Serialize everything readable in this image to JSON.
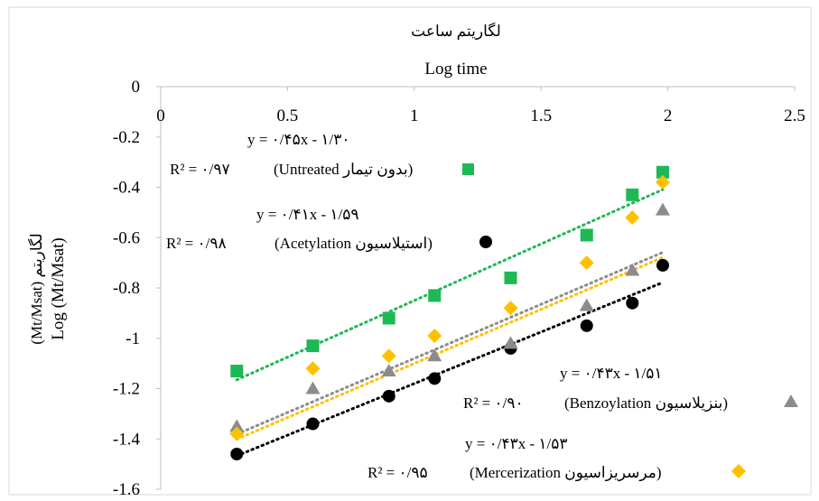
{
  "chart_data": {
    "type": "scatter",
    "title_fa": "لگاریتم ساعت",
    "xlabel": "Log time",
    "ylabel": "Log (Mt/Msat)",
    "ylabel_fa": "(Mt/Msat) لگاریتم",
    "xlim": [
      0,
      2.5
    ],
    "ylim": [
      -1.6,
      0
    ],
    "x_ticks": [
      "0",
      "0.5",
      "1",
      "1.5",
      "2",
      "2.5"
    ],
    "y_ticks": [
      "0",
      "-0.2",
      "-0.4",
      "-0.6",
      "-0.8",
      "-1",
      "-1.2",
      "-1.4",
      "-1.6"
    ],
    "x_axis_position": "top",
    "grid": false,
    "series": [
      {
        "name": "Untreated",
        "name_fa": "بدون تیمار",
        "marker": "square",
        "color": "#1db954",
        "x": [
          0.3,
          0.6,
          0.9,
          1.08,
          1.38,
          1.68,
          1.86,
          1.98
        ],
        "y": [
          -1.13,
          -1.03,
          -0.92,
          -0.83,
          -0.76,
          -0.59,
          -0.43,
          -0.34
        ],
        "equation": "y = ۰/۴۵x - ۱/۳۰",
        "r2": "R² = ۰/۹۷",
        "legend": "(Untreated بدون تیمار)"
      },
      {
        "name": "Acetylation",
        "name_fa": "استیلاسیون",
        "marker": "circle",
        "color": "#000000",
        "x": [
          0.3,
          0.6,
          0.9,
          1.08,
          1.38,
          1.68,
          1.86,
          1.98
        ],
        "y": [
          -1.46,
          -1.34,
          -1.23,
          -1.16,
          -1.04,
          -0.95,
          -0.86,
          -0.71
        ],
        "equation": "y = ۰/۴۱x - ۱/۵۹",
        "r2": "R² = ۰/۹۸",
        "legend": "(Acetylation استیلاسیون)"
      },
      {
        "name": "Benzoylation",
        "name_fa": "بنزیلاسیون",
        "marker": "triangle",
        "color": "#8c8c8c",
        "x": [
          0.3,
          0.6,
          0.9,
          1.08,
          1.38,
          1.68,
          1.86,
          1.98
        ],
        "y": [
          -1.35,
          -1.2,
          -1.13,
          -1.07,
          -1.02,
          -0.87,
          -0.73,
          -0.49
        ],
        "equation": "y = ۰/۴۳x - ۱/۵۱",
        "r2": "R² = ۰/۹۰",
        "legend": "(Benzoylation بنزیلاسیون)"
      },
      {
        "name": "Mercerization",
        "name_fa": "مرسریزاسیون",
        "marker": "diamond",
        "color": "#ffc000",
        "x": [
          0.3,
          0.6,
          0.9,
          1.08,
          1.38,
          1.68,
          1.86,
          1.98
        ],
        "y": [
          -1.38,
          -1.12,
          -1.07,
          -0.99,
          -0.88,
          -0.7,
          -0.52,
          -0.38
        ],
        "equation": "y = ۰/۴۳x - ۱/۵۳",
        "r2": "R² = ۰/۹۵",
        "legend": "(Mercerization مرسریزاسیون)"
      }
    ],
    "trendlines": [
      {
        "series": "Untreated",
        "slope": 0.45,
        "intercept": -1.3,
        "from": 0.3,
        "to": 1.98
      },
      {
        "series": "Acetylation",
        "slope": 0.41,
        "intercept": -1.59,
        "from": 0.3,
        "to": 1.98
      },
      {
        "series": "Benzoylation",
        "slope": 0.43,
        "intercept": -1.51,
        "from": 0.3,
        "to": 1.98
      },
      {
        "series": "Mercerization",
        "slope": 0.43,
        "intercept": -1.53,
        "from": 0.3,
        "to": 1.98
      }
    ]
  }
}
